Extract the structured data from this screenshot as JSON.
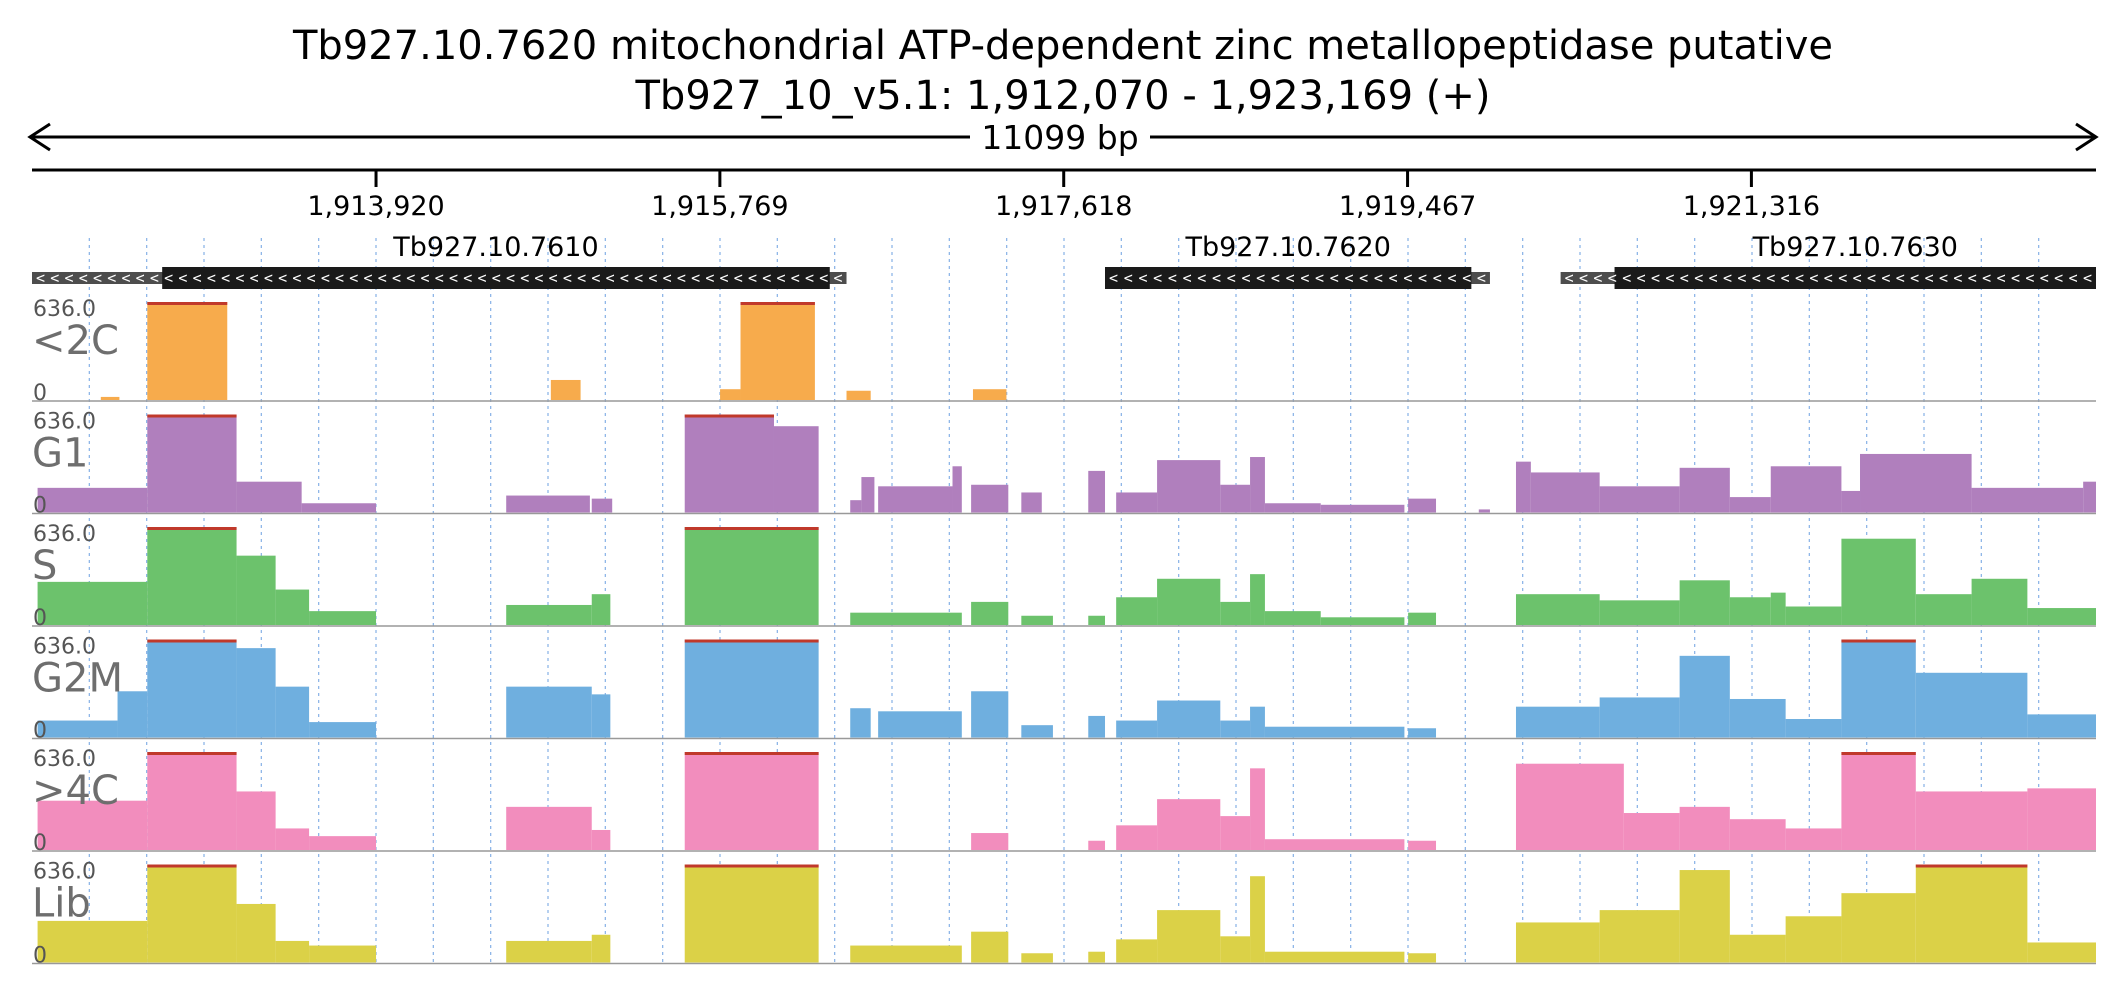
{
  "header": {
    "title_line1": "Tb927.10.7620  mitochondrial ATP-dependent zinc metallopeptidase  putative",
    "title_line2": "Tb927_10_v5.1: 1,912,070 - 1,923,169 (+)",
    "span_label": "11099 bp"
  },
  "chart_data": {
    "type": "area",
    "region": {
      "chromosome": "Tb927_10_v5.1",
      "start": 1912070,
      "end": 1923169,
      "strand": "+"
    },
    "axis_ticks": [
      {
        "pos": 1913920,
        "label": "1,913,920"
      },
      {
        "pos": 1915769,
        "label": "1,915,769"
      },
      {
        "pos": 1917618,
        "label": "1,917,618"
      },
      {
        "pos": 1919467,
        "label": "1,919,467"
      },
      {
        "pos": 1921316,
        "label": "1,921,316"
      }
    ],
    "genes": [
      {
        "name": "Tb927.10.7610",
        "cds_start": 1912770,
        "cds_end": 1916360,
        "utr_start": 1912070,
        "utr_end": 1916450,
        "strand": "-"
      },
      {
        "name": "Tb927.10.7620",
        "cds_start": 1917840,
        "cds_end": 1919810,
        "utr_start": 1917840,
        "utr_end": 1919910,
        "strand": "-"
      },
      {
        "name": "Tb927.10.7630",
        "cds_start": 1920580,
        "cds_end": 1923390,
        "utr_start": 1920290,
        "utr_end": 1923390,
        "strand": "-"
      }
    ],
    "ylim": [
      0,
      636.0
    ],
    "tracks": [
      {
        "name": "<2C",
        "color": "#f7ab4c",
        "scale_max": "636.0",
        "scale_min": "0",
        "segments": [
          {
            "start": 1912440,
            "end": 1912540,
            "value": 20
          },
          {
            "start": 1912690,
            "end": 1913120,
            "value": 636
          },
          {
            "start": 1914860,
            "end": 1915020,
            "value": 130
          },
          {
            "start": 1915770,
            "end": 1915880,
            "value": 70
          },
          {
            "start": 1915880,
            "end": 1916280,
            "value": 636
          },
          {
            "start": 1916450,
            "end": 1916580,
            "value": 60
          },
          {
            "start": 1917130,
            "end": 1917310,
            "value": 70
          }
        ]
      },
      {
        "name": "G1",
        "color": "#b07fbd",
        "scale_max": "636.0",
        "scale_min": "0",
        "segments": [
          {
            "start": 1912100,
            "end": 1912690,
            "value": 160
          },
          {
            "start": 1912690,
            "end": 1913170,
            "value": 636
          },
          {
            "start": 1913170,
            "end": 1913520,
            "value": 200
          },
          {
            "start": 1913520,
            "end": 1913920,
            "value": 60
          },
          {
            "start": 1914620,
            "end": 1915070,
            "value": 110
          },
          {
            "start": 1915080,
            "end": 1915190,
            "value": 90
          },
          {
            "start": 1915580,
            "end": 1916060,
            "value": 636
          },
          {
            "start": 1916060,
            "end": 1916300,
            "value": 560
          },
          {
            "start": 1916470,
            "end": 1916530,
            "value": 80
          },
          {
            "start": 1916530,
            "end": 1916600,
            "value": 230
          },
          {
            "start": 1916620,
            "end": 1917020,
            "value": 170
          },
          {
            "start": 1917020,
            "end": 1917070,
            "value": 300
          },
          {
            "start": 1917120,
            "end": 1917320,
            "value": 180
          },
          {
            "start": 1917390,
            "end": 1917500,
            "value": 130
          },
          {
            "start": 1917750,
            "end": 1917840,
            "value": 270
          },
          {
            "start": 1917900,
            "end": 1918120,
            "value": 130
          },
          {
            "start": 1918120,
            "end": 1918460,
            "value": 340
          },
          {
            "start": 1918460,
            "end": 1918620,
            "value": 180
          },
          {
            "start": 1918620,
            "end": 1918700,
            "value": 360
          },
          {
            "start": 1918700,
            "end": 1919000,
            "value": 60
          },
          {
            "start": 1919000,
            "end": 1919450,
            "value": 50
          },
          {
            "start": 1919470,
            "end": 1919620,
            "value": 90
          },
          {
            "start": 1919850,
            "end": 1919910,
            "value": 20
          },
          {
            "start": 1920050,
            "end": 1920130,
            "value": 330
          },
          {
            "start": 1920130,
            "end": 1920500,
            "value": 260
          },
          {
            "start": 1920500,
            "end": 1920930,
            "value": 170
          },
          {
            "start": 1920930,
            "end": 1921200,
            "value": 290
          },
          {
            "start": 1921200,
            "end": 1921420,
            "value": 100
          },
          {
            "start": 1921420,
            "end": 1921800,
            "value": 300
          },
          {
            "start": 1921800,
            "end": 1921900,
            "value": 140
          },
          {
            "start": 1921900,
            "end": 1922500,
            "value": 380
          },
          {
            "start": 1922500,
            "end": 1923100,
            "value": 160
          },
          {
            "start": 1923100,
            "end": 1923169,
            "value": 200
          }
        ]
      },
      {
        "name": "S",
        "color": "#6cc26c",
        "scale_max": "636.0",
        "scale_min": "0",
        "segments": [
          {
            "start": 1912100,
            "end": 1912690,
            "value": 280
          },
          {
            "start": 1912690,
            "end": 1913170,
            "value": 636
          },
          {
            "start": 1913170,
            "end": 1913380,
            "value": 450
          },
          {
            "start": 1913380,
            "end": 1913560,
            "value": 230
          },
          {
            "start": 1913560,
            "end": 1913920,
            "value": 90
          },
          {
            "start": 1914620,
            "end": 1915080,
            "value": 130
          },
          {
            "start": 1915080,
            "end": 1915180,
            "value": 200
          },
          {
            "start": 1915580,
            "end": 1916300,
            "value": 636
          },
          {
            "start": 1916470,
            "end": 1917070,
            "value": 80
          },
          {
            "start": 1917120,
            "end": 1917320,
            "value": 150
          },
          {
            "start": 1917390,
            "end": 1917560,
            "value": 60
          },
          {
            "start": 1917750,
            "end": 1917840,
            "value": 60
          },
          {
            "start": 1917900,
            "end": 1918120,
            "value": 180
          },
          {
            "start": 1918120,
            "end": 1918460,
            "value": 300
          },
          {
            "start": 1918460,
            "end": 1918620,
            "value": 150
          },
          {
            "start": 1918620,
            "end": 1918700,
            "value": 330
          },
          {
            "start": 1918700,
            "end": 1919000,
            "value": 90
          },
          {
            "start": 1919000,
            "end": 1919450,
            "value": 50
          },
          {
            "start": 1919470,
            "end": 1919620,
            "value": 80
          },
          {
            "start": 1920050,
            "end": 1920500,
            "value": 200
          },
          {
            "start": 1920500,
            "end": 1920930,
            "value": 160
          },
          {
            "start": 1920930,
            "end": 1921200,
            "value": 290
          },
          {
            "start": 1921200,
            "end": 1921420,
            "value": 180
          },
          {
            "start": 1921420,
            "end": 1921500,
            "value": 210
          },
          {
            "start": 1921500,
            "end": 1921800,
            "value": 120
          },
          {
            "start": 1921800,
            "end": 1922200,
            "value": 560
          },
          {
            "start": 1922200,
            "end": 1922500,
            "value": 200
          },
          {
            "start": 1922500,
            "end": 1922800,
            "value": 300
          },
          {
            "start": 1922800,
            "end": 1923169,
            "value": 110
          }
        ]
      },
      {
        "name": "G2M",
        "color": "#6fafdf",
        "scale_max": "636.0",
        "scale_min": "0",
        "segments": [
          {
            "start": 1912100,
            "end": 1912530,
            "value": 110
          },
          {
            "start": 1912530,
            "end": 1912690,
            "value": 300
          },
          {
            "start": 1912690,
            "end": 1913170,
            "value": 636
          },
          {
            "start": 1913170,
            "end": 1913380,
            "value": 580
          },
          {
            "start": 1913380,
            "end": 1913560,
            "value": 330
          },
          {
            "start": 1913560,
            "end": 1913920,
            "value": 100
          },
          {
            "start": 1914620,
            "end": 1915080,
            "value": 330
          },
          {
            "start": 1915080,
            "end": 1915180,
            "value": 280
          },
          {
            "start": 1915580,
            "end": 1916300,
            "value": 636
          },
          {
            "start": 1916470,
            "end": 1916580,
            "value": 190
          },
          {
            "start": 1916620,
            "end": 1917070,
            "value": 170
          },
          {
            "start": 1917120,
            "end": 1917320,
            "value": 300
          },
          {
            "start": 1917390,
            "end": 1917560,
            "value": 80
          },
          {
            "start": 1917750,
            "end": 1917840,
            "value": 140
          },
          {
            "start": 1917900,
            "end": 1918120,
            "value": 110
          },
          {
            "start": 1918120,
            "end": 1918460,
            "value": 240
          },
          {
            "start": 1918460,
            "end": 1918620,
            "value": 110
          },
          {
            "start": 1918620,
            "end": 1918700,
            "value": 200
          },
          {
            "start": 1918700,
            "end": 1919450,
            "value": 70
          },
          {
            "start": 1919470,
            "end": 1919620,
            "value": 60
          },
          {
            "start": 1920050,
            "end": 1920500,
            "value": 200
          },
          {
            "start": 1920500,
            "end": 1920930,
            "value": 260
          },
          {
            "start": 1920930,
            "end": 1921200,
            "value": 530
          },
          {
            "start": 1921200,
            "end": 1921500,
            "value": 250
          },
          {
            "start": 1921500,
            "end": 1921800,
            "value": 120
          },
          {
            "start": 1921800,
            "end": 1922200,
            "value": 636
          },
          {
            "start": 1922200,
            "end": 1922800,
            "value": 420
          },
          {
            "start": 1922800,
            "end": 1923169,
            "value": 150
          }
        ]
      },
      {
        "name": ">4C",
        "color": "#f28dbd",
        "scale_max": "636.0",
        "scale_min": "0",
        "segments": [
          {
            "start": 1912100,
            "end": 1912690,
            "value": 320
          },
          {
            "start": 1912690,
            "end": 1913170,
            "value": 636
          },
          {
            "start": 1913170,
            "end": 1913380,
            "value": 380
          },
          {
            "start": 1913380,
            "end": 1913560,
            "value": 140
          },
          {
            "start": 1913560,
            "end": 1913920,
            "value": 90
          },
          {
            "start": 1914620,
            "end": 1915080,
            "value": 280
          },
          {
            "start": 1915080,
            "end": 1915180,
            "value": 130
          },
          {
            "start": 1915580,
            "end": 1916300,
            "value": 636
          },
          {
            "start": 1917120,
            "end": 1917320,
            "value": 110
          },
          {
            "start": 1917750,
            "end": 1917840,
            "value": 60
          },
          {
            "start": 1917900,
            "end": 1918120,
            "value": 160
          },
          {
            "start": 1918120,
            "end": 1918460,
            "value": 330
          },
          {
            "start": 1918460,
            "end": 1918620,
            "value": 220
          },
          {
            "start": 1918620,
            "end": 1918700,
            "value": 530
          },
          {
            "start": 1918700,
            "end": 1919450,
            "value": 70
          },
          {
            "start": 1919470,
            "end": 1919620,
            "value": 60
          },
          {
            "start": 1920050,
            "end": 1920630,
            "value": 560
          },
          {
            "start": 1920630,
            "end": 1920930,
            "value": 240
          },
          {
            "start": 1920930,
            "end": 1921200,
            "value": 280
          },
          {
            "start": 1921200,
            "end": 1921500,
            "value": 200
          },
          {
            "start": 1921500,
            "end": 1921800,
            "value": 140
          },
          {
            "start": 1921800,
            "end": 1922200,
            "value": 636
          },
          {
            "start": 1922200,
            "end": 1922800,
            "value": 380
          },
          {
            "start": 1922800,
            "end": 1923169,
            "value": 400
          }
        ]
      },
      {
        "name": "Lib",
        "color": "#dbd147",
        "scale_max": "636.0",
        "scale_min": "0",
        "segments": [
          {
            "start": 1912100,
            "end": 1912690,
            "value": 270
          },
          {
            "start": 1912690,
            "end": 1913170,
            "value": 636
          },
          {
            "start": 1913170,
            "end": 1913380,
            "value": 380
          },
          {
            "start": 1913380,
            "end": 1913560,
            "value": 140
          },
          {
            "start": 1913560,
            "end": 1913920,
            "value": 110
          },
          {
            "start": 1914620,
            "end": 1915080,
            "value": 140
          },
          {
            "start": 1915080,
            "end": 1915180,
            "value": 180
          },
          {
            "start": 1915580,
            "end": 1916300,
            "value": 636
          },
          {
            "start": 1916470,
            "end": 1917070,
            "value": 110
          },
          {
            "start": 1917120,
            "end": 1917320,
            "value": 200
          },
          {
            "start": 1917390,
            "end": 1917560,
            "value": 60
          },
          {
            "start": 1917750,
            "end": 1917840,
            "value": 70
          },
          {
            "start": 1917900,
            "end": 1918120,
            "value": 150
          },
          {
            "start": 1918120,
            "end": 1918460,
            "value": 340
          },
          {
            "start": 1918460,
            "end": 1918620,
            "value": 170
          },
          {
            "start": 1918620,
            "end": 1918700,
            "value": 560
          },
          {
            "start": 1918700,
            "end": 1919450,
            "value": 70
          },
          {
            "start": 1919470,
            "end": 1919620,
            "value": 60
          },
          {
            "start": 1920050,
            "end": 1920500,
            "value": 260
          },
          {
            "start": 1920500,
            "end": 1920930,
            "value": 340
          },
          {
            "start": 1920930,
            "end": 1921200,
            "value": 600
          },
          {
            "start": 1921200,
            "end": 1921500,
            "value": 180
          },
          {
            "start": 1921500,
            "end": 1921800,
            "value": 300
          },
          {
            "start": 1921800,
            "end": 1922200,
            "value": 450
          },
          {
            "start": 1922200,
            "end": 1922800,
            "value": 636
          },
          {
            "start": 1922800,
            "end": 1923169,
            "value": 130
          }
        ]
      }
    ]
  }
}
